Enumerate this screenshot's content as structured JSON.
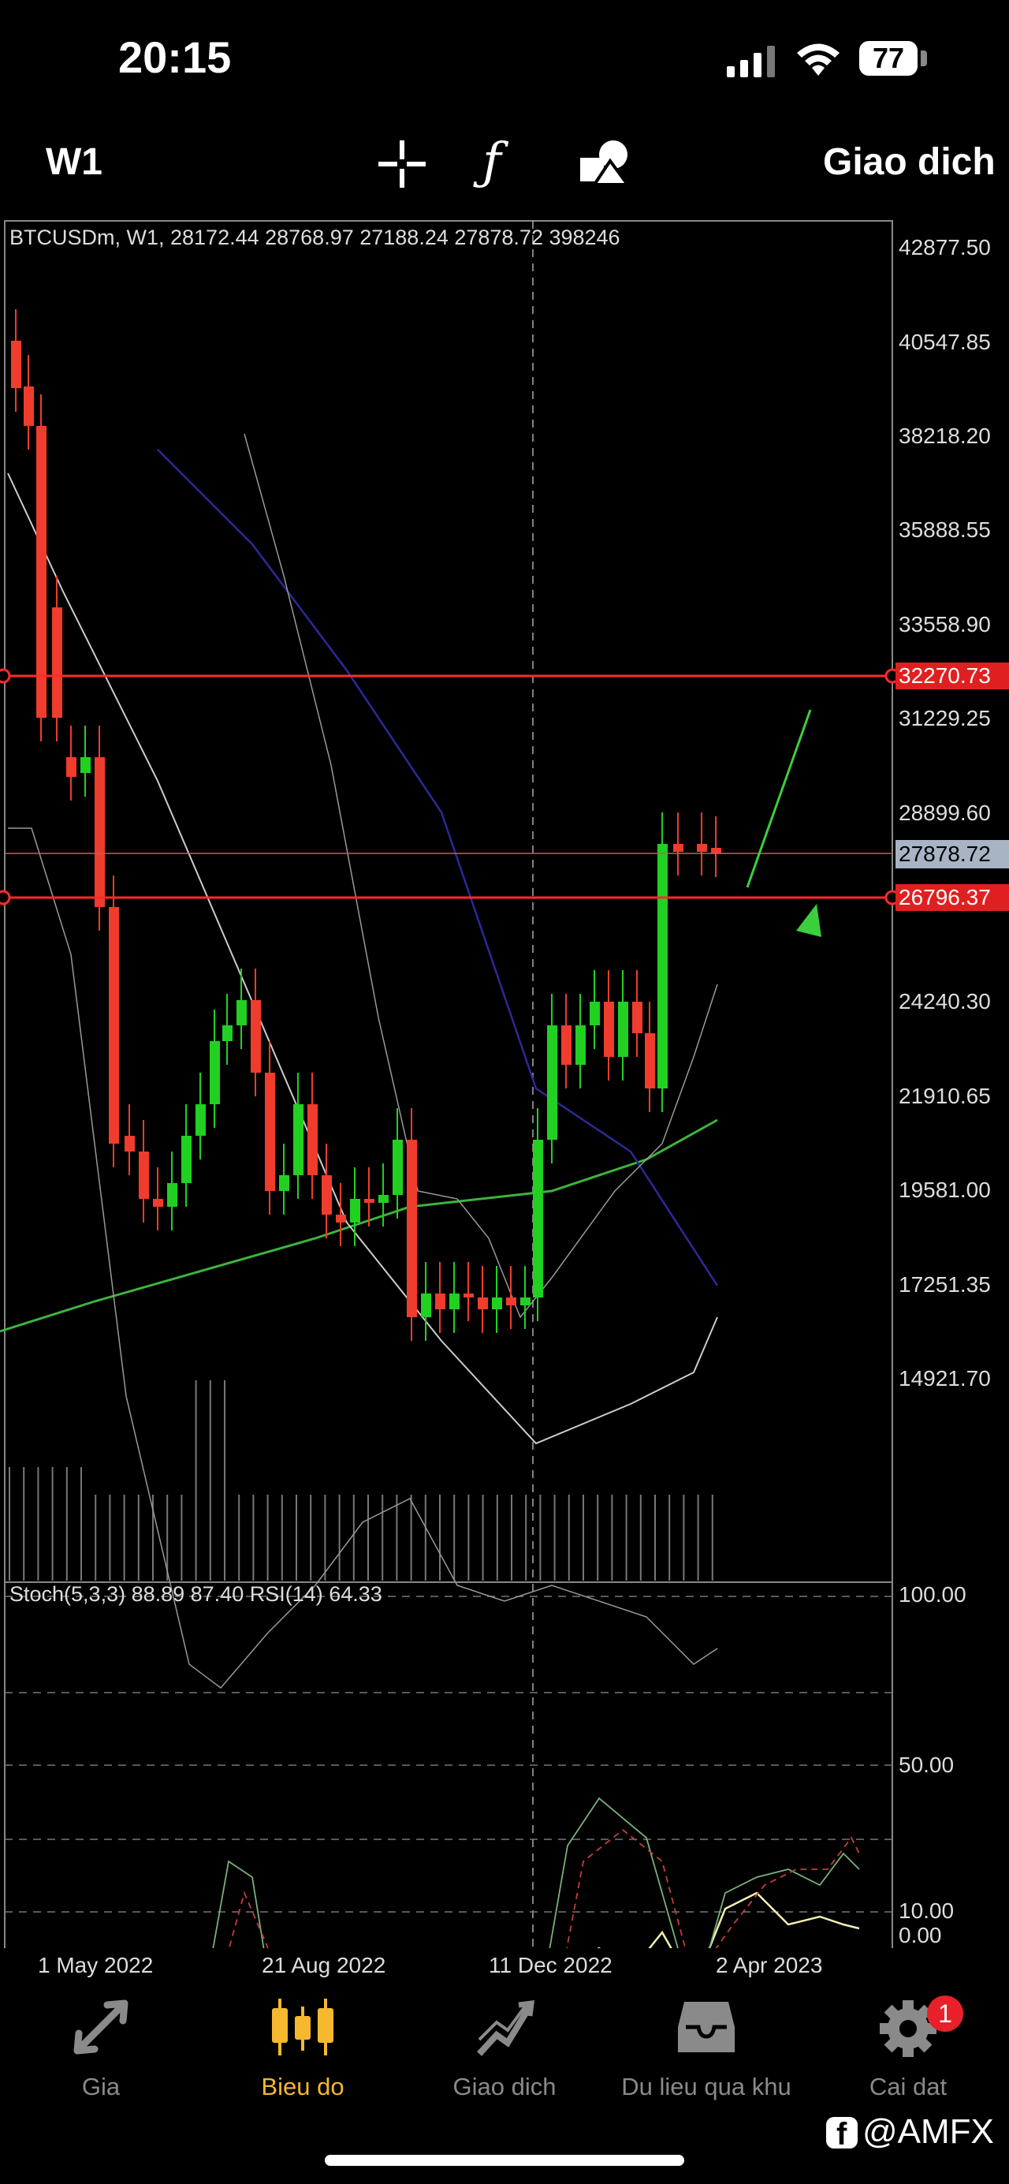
{
  "status_bar": {
    "time": "20:15",
    "battery": "77",
    "icons": [
      "cellular-signal-icon",
      "wifi-icon",
      "battery-icon"
    ]
  },
  "toolbar": {
    "timeframe": "W1",
    "trade_label": "Giao dich",
    "icons": [
      "crosshair-icon",
      "function-icon",
      "objects-icon"
    ]
  },
  "chart": {
    "info": "BTCUSDm, W1, 28172.44 28768.97 27188.24 27878.72 398246",
    "price_ticks": [
      "42877.50",
      "40547.85",
      "38218.20",
      "35888.55",
      "33558.90",
      "31229.25",
      "28899.60",
      "24240.30",
      "21910.65",
      "19581.00",
      "17251.35",
      "14921.70"
    ],
    "hline_upper": "32270.73",
    "hline_lower": "26796.37",
    "current_price": "27878.72",
    "time_ticks": [
      "1 May 2022",
      "21 Aug 2022",
      "11 Dec 2022",
      "2 Apr 2023"
    ],
    "colors": {
      "bull": "#22d022",
      "bear": "#f03c2c",
      "hline": "#ff2a2a",
      "ma_green": "#3cb43c",
      "ma_blue": "#2a2a9a",
      "arrow": "#3ccf3c"
    }
  },
  "indicator": {
    "info": "Stoch(5,3,3) 88.89 87.40 RSI(14) 64.33",
    "levels": [
      "100.00",
      "50.00",
      "10.00",
      "0.00"
    ]
  },
  "nav": {
    "items": [
      {
        "label": "Gia",
        "icon": "quotes-icon"
      },
      {
        "label": "Bieu do",
        "icon": "chart-candles-icon",
        "active": true
      },
      {
        "label": "Giao dich",
        "icon": "trade-icon"
      },
      {
        "label": "Du lieu qua khu",
        "icon": "history-icon"
      },
      {
        "label": "Cai dat",
        "icon": "settings-icon",
        "badge": "1"
      }
    ]
  },
  "watermark": "@AMFX"
}
